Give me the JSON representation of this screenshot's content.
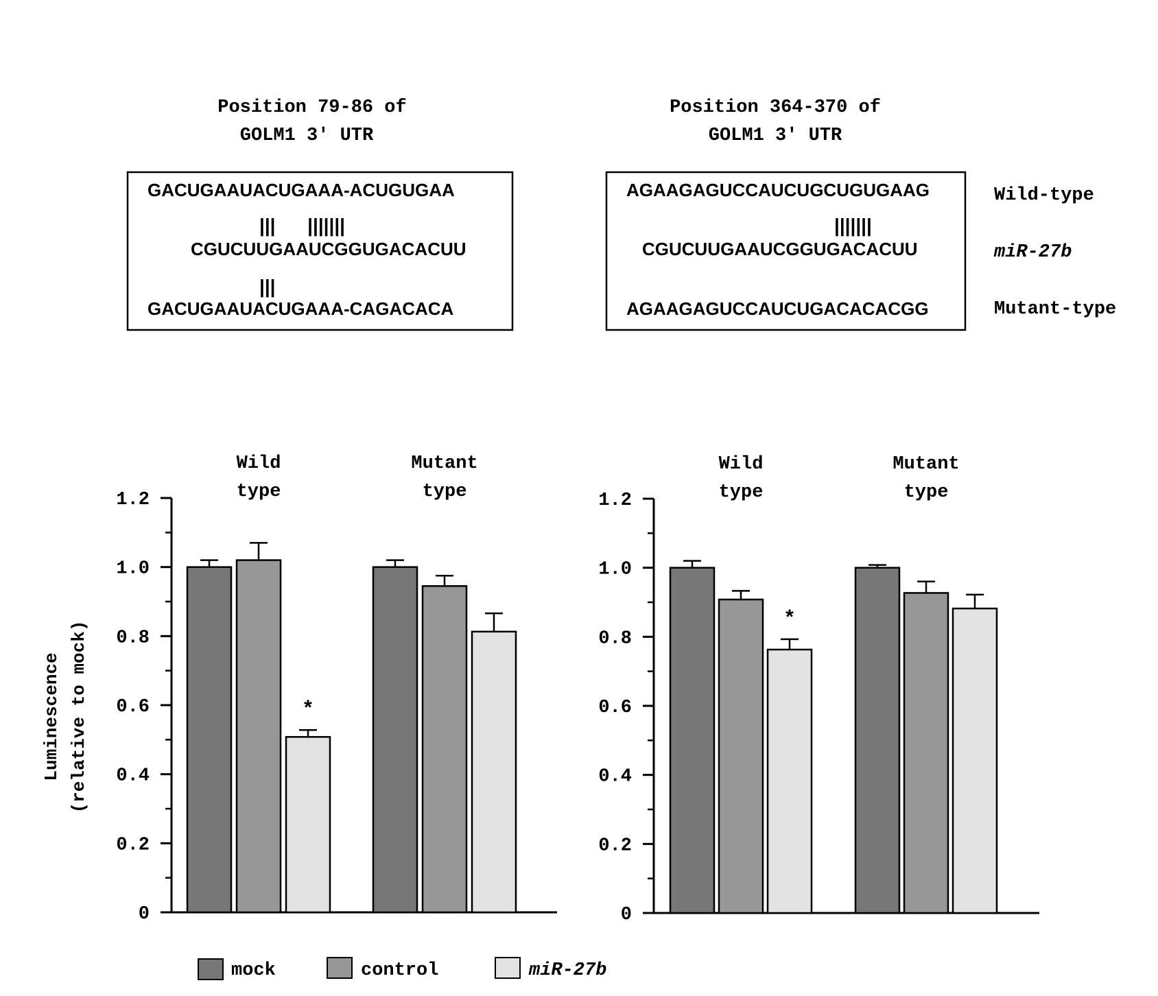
{
  "site_panels": [
    {
      "title_line1": "Position 79-86 of",
      "title_line2": "GOLM1 3' UTR",
      "wild_seq": "GACUGAAUACUGAAA-ACUGUGAA",
      "wild_pairs": "|||      |||||||",
      "mir_seq": "CGUCUUGAAUCGGUGACACUU",
      "mutant_pairs": "|||",
      "mutant_seq": "GACUGAAUACUGAAA-CAGACACA"
    },
    {
      "title_line1": "Position 364-370 of",
      "title_line2": "GOLM1 3' UTR",
      "wild_seq": "AGAAGAGUCCAUCUGCUGUGAAG",
      "wild_pairs": "|||||||",
      "mir_seq": "CGUCUUGAAUCGGUGACACUU",
      "mutant_seq": "AGAAGAGUCCAUCUGACACACGG"
    }
  ],
  "row_labels": {
    "wild": "Wild-type",
    "mir": "miR-27b",
    "mutant": "Mutant-type"
  },
  "y_axis_label_line1": "Luminescence",
  "y_axis_label_line2": "(relative to mock)",
  "legend": [
    {
      "name": "mock",
      "color": "#777777",
      "italic": false
    },
    {
      "name": "control",
      "color": "#979797",
      "italic": false
    },
    {
      "name": "miR-27b",
      "color": "#e3e3e3",
      "italic": true
    }
  ],
  "chart_data": [
    {
      "type": "bar",
      "ylim": [
        0,
        1.2
      ],
      "yticks": [
        "0",
        "0.2",
        "0.4",
        "0.6",
        "0.8",
        "1.0",
        "1.2"
      ],
      "groups": [
        {
          "label_line1": "Wild",
          "label_line2": "type"
        },
        {
          "label_line1": "Mutant",
          "label_line2": "type"
        }
      ],
      "series": [
        {
          "name": "mock",
          "values": [
            1.0,
            1.0
          ],
          "errors": [
            0.02,
            0.02
          ]
        },
        {
          "name": "control",
          "values": [
            1.02,
            0.945
          ],
          "errors": [
            0.05,
            0.03
          ]
        },
        {
          "name": "miR-27b",
          "values": [
            0.508,
            0.813
          ],
          "errors": [
            0.02,
            0.053
          ]
        }
      ],
      "annotations": [
        {
          "group": 0,
          "series": 2,
          "text": "*"
        }
      ]
    },
    {
      "type": "bar",
      "ylim": [
        0,
        1.2
      ],
      "yticks": [
        "0",
        "0.2",
        "0.4",
        "0.6",
        "0.8",
        "1.0",
        "1.2"
      ],
      "groups": [
        {
          "label_line1": "Wild",
          "label_line2": "type"
        },
        {
          "label_line1": "Mutant",
          "label_line2": "type"
        }
      ],
      "series": [
        {
          "name": "mock",
          "values": [
            1.0,
            1.0
          ],
          "errors": [
            0.02,
            0.008
          ]
        },
        {
          "name": "control",
          "values": [
            0.908,
            0.927
          ],
          "errors": [
            0.025,
            0.033
          ]
        },
        {
          "name": "miR-27b",
          "values": [
            0.763,
            0.882
          ],
          "errors": [
            0.03,
            0.04
          ]
        }
      ],
      "annotations": [
        {
          "group": 0,
          "series": 2,
          "text": "*"
        }
      ]
    }
  ]
}
